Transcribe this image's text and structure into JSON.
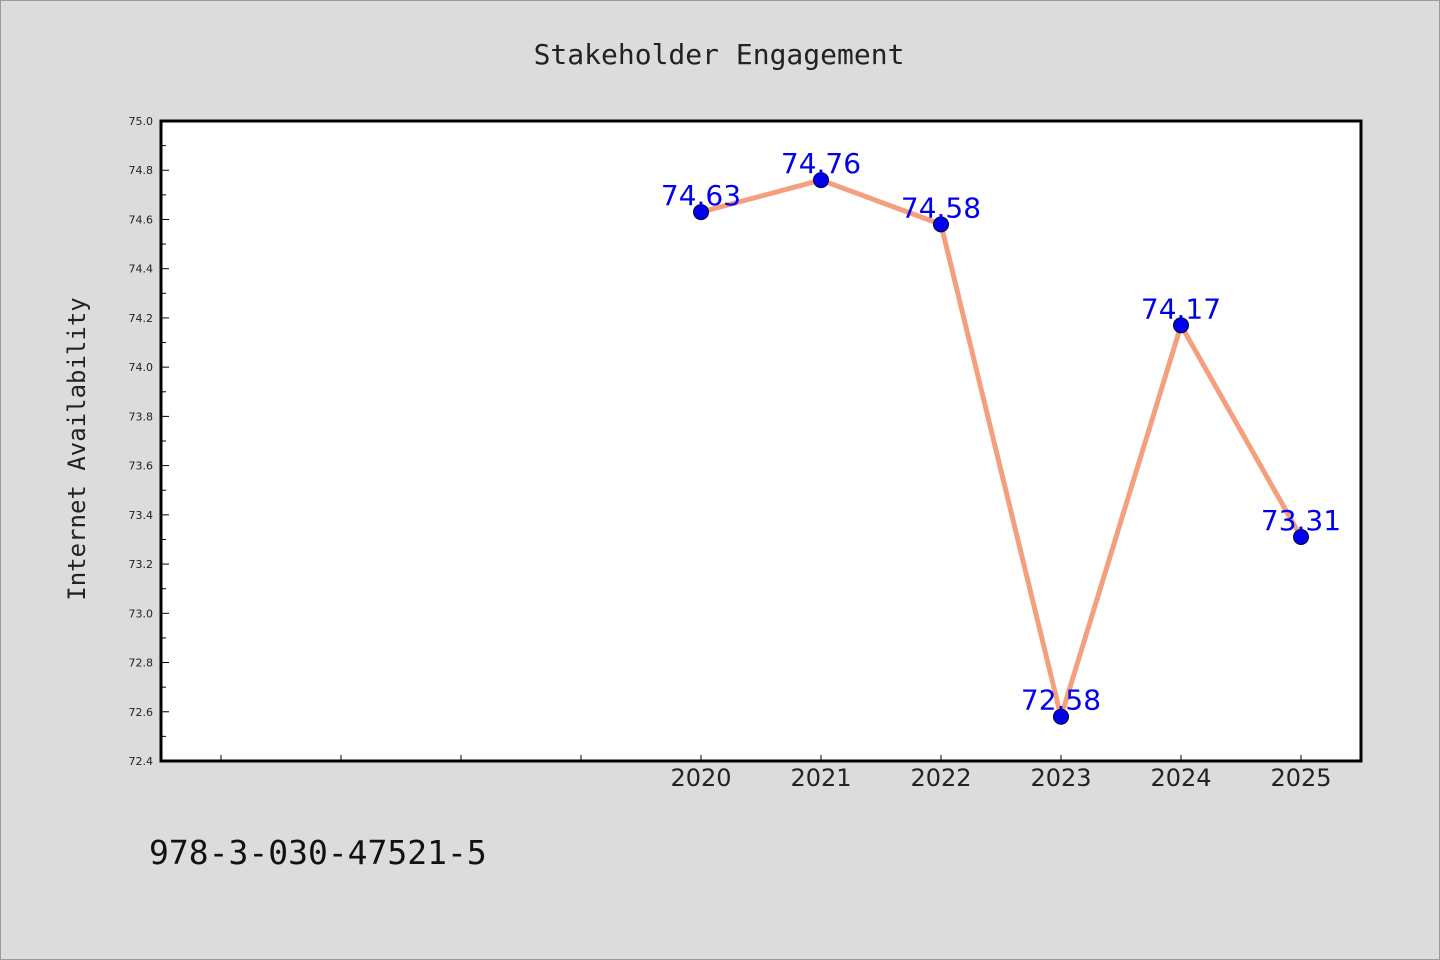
{
  "chart_data": {
    "type": "line",
    "title": "Stakeholder Engagement",
    "xlabel": "",
    "ylabel": "Internet Availability",
    "categories": [
      "2020",
      "2021",
      "2022",
      "2023",
      "2024",
      "2025"
    ],
    "series": [
      {
        "values": [
          74.63,
          74.76,
          74.58,
          72.58,
          74.17,
          73.31
        ]
      }
    ],
    "data_labels": [
      "74.63",
      "74.76",
      "74.58",
      "72.58",
      "74.17",
      "73.31"
    ],
    "ylim": [
      72.4,
      75.0
    ],
    "y_ticks": [
      "72.4",
      "72.6",
      "72.8",
      "73.0",
      "73.2",
      "73.4",
      "73.6",
      "73.8",
      "74.0",
      "74.2",
      "74.4",
      "74.6",
      "74.8",
      "75.0"
    ],
    "grid": false,
    "legend": "none",
    "colors": {
      "line": "#f4a07e",
      "marker": "#0000ee",
      "label": "#0000ee",
      "background": "#dcdcdc",
      "plot_area": "#ffffff",
      "axes": "#000000"
    }
  },
  "footer": {
    "isbn": "978-3-030-47521-5"
  }
}
